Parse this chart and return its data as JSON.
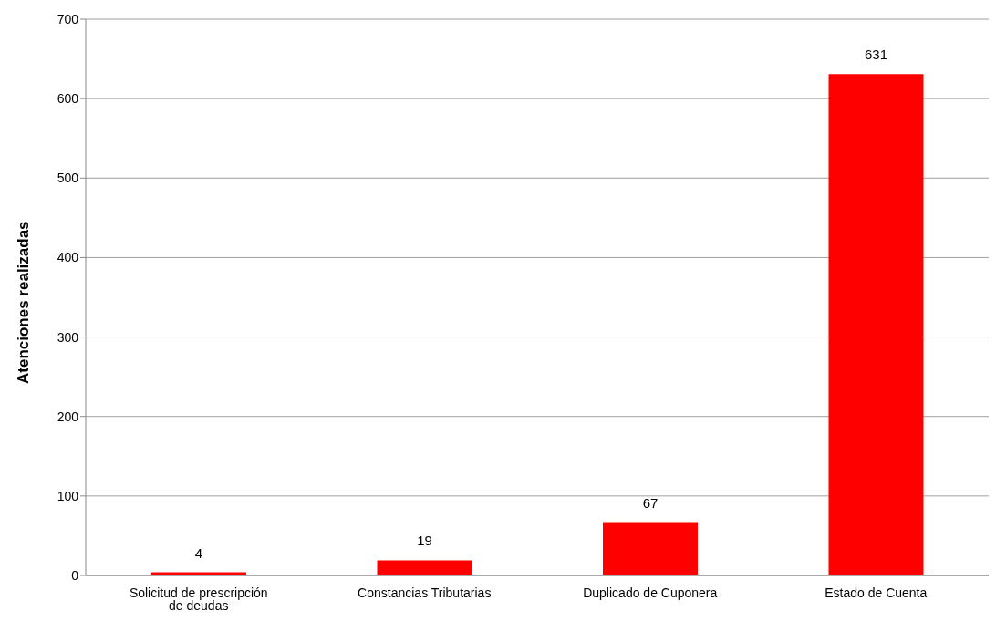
{
  "chart_data": {
    "type": "bar",
    "ylabel": "Atenciones realizadas",
    "categories": [
      "Solicitud de prescripción de deudas",
      "Constancias Tributarias",
      "Duplicado de Cuponera",
      "Estado de Cuenta"
    ],
    "values": [
      4,
      19,
      67,
      631
    ],
    "color": "#ff0000",
    "ylim": [
      0,
      700
    ],
    "yticks": [
      0,
      100,
      200,
      300,
      400,
      500,
      600,
      700
    ],
    "grid": "y",
    "data_labels": true
  }
}
